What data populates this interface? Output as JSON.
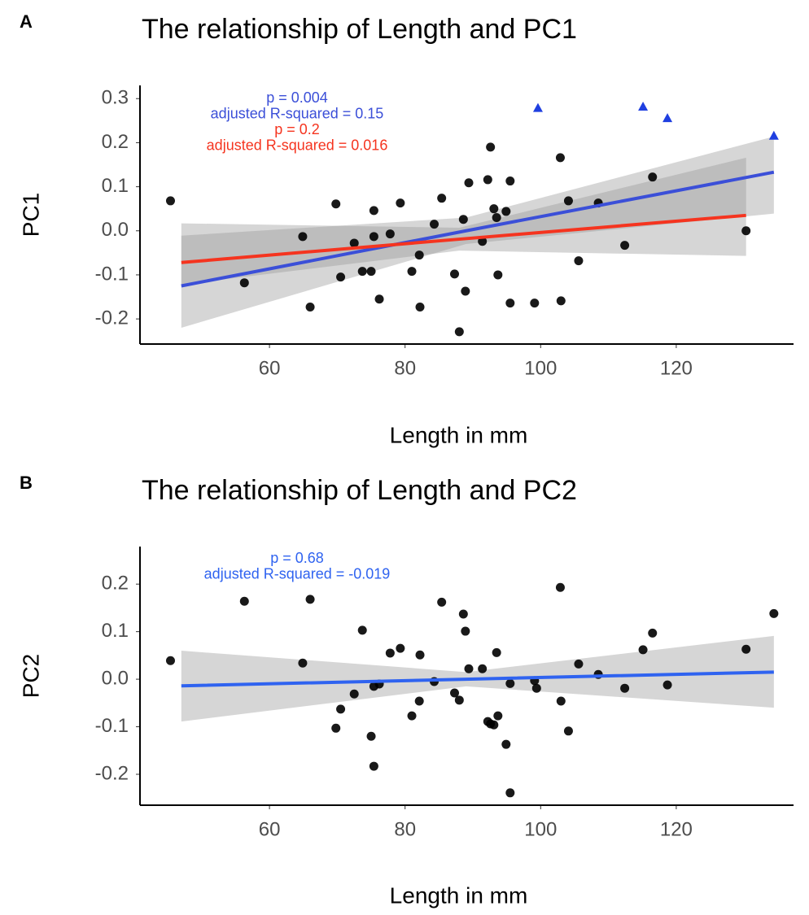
{
  "chart_data": [
    {
      "type": "scatter",
      "panel": "A",
      "title": "The relationship of Length and PC1",
      "x_label": "Length in mm",
      "y_label": "PC1",
      "xlim": [
        40.9,
        137.3
      ],
      "xticks": [
        60,
        80,
        100,
        120
      ],
      "ylim": [
        -0.257,
        0.33
      ],
      "yticks": [
        0.3,
        0.2,
        0.1,
        {
          "value": 0,
          "label": "0.0"
        },
        -0.1,
        -0.2
      ],
      "grid": false,
      "series": [
        {
          "color": "#000000",
          "marker": "circle",
          "x": [
            45.4,
            56.3,
            64.9,
            66.0,
            69.8,
            70.5,
            72.5,
            73.7,
            75.0,
            75.4,
            75.4,
            76.2,
            77.8,
            79.3,
            81.0,
            82.1,
            82.2,
            84.3,
            85.4,
            87.3,
            88.0,
            88.6,
            88.9,
            89.4,
            91.4,
            92.2,
            92.6,
            93.1,
            93.5,
            93.7,
            94.9,
            95.5,
            95.5,
            99.1,
            102.9,
            103.0,
            104.1,
            105.6,
            108.5,
            112.4,
            116.5,
            130.3
          ],
          "values": [
            0.068,
            -0.118,
            -0.013,
            -0.173,
            0.061,
            -0.105,
            -0.028,
            -0.092,
            -0.092,
            0.046,
            -0.013,
            -0.155,
            -0.007,
            0.063,
            -0.092,
            -0.055,
            -0.173,
            0.015,
            0.074,
            -0.098,
            -0.229,
            0.026,
            -0.137,
            0.109,
            -0.024,
            0.116,
            0.19,
            0.05,
            0.03,
            -0.1,
            0.044,
            0.113,
            -0.164,
            -0.164,
            0.166,
            -0.159,
            0.068,
            -0.068,
            0.063,
            -0.033,
            0.122,
            0.0
          ]
        },
        {
          "color": "#1f3fe0",
          "marker": "triangle",
          "x": [
            99.6,
            115.1,
            118.7,
            134.4
          ],
          "values": [
            0.279,
            0.282,
            0.256,
            0.216
          ]
        }
      ],
      "fits": [
        {
          "color": "#3b4fd8",
          "x": [
            47,
            89,
            134.4
          ],
          "values": [
            -0.125,
            0.0,
            0.133
          ],
          "lower": [
            -0.22,
            -0.03,
            0.039
          ],
          "upper": [
            -0.011,
            0.03,
            0.214
          ],
          "annotations": [
            "p = 0.004",
            "adjusted R-squared = 0.15"
          ]
        },
        {
          "color": "#f5341f",
          "x": [
            47,
            88,
            130.3
          ],
          "values": [
            -0.072,
            -0.019,
            0.035
          ],
          "lower": [
            -0.122,
            -0.045,
            -0.057
          ],
          "upper": [
            0.017,
            0.007,
            0.166
          ],
          "annotations": [
            "p = 0.2",
            "adjusted R-squared = 0.016"
          ]
        }
      ]
    },
    {
      "type": "scatter",
      "panel": "B",
      "title": "The relationship of Length and PC2",
      "x_label": "Length in mm",
      "y_label": "PC2",
      "xlim": [
        40.9,
        137.3
      ],
      "xticks": [
        60,
        80,
        100,
        120
      ],
      "ylim": [
        -0.265,
        0.279
      ],
      "yticks": [
        0.2,
        0.1,
        {
          "value": 0,
          "label": "0.0"
        },
        -0.1,
        -0.2
      ],
      "grid": false,
      "series": [
        {
          "color": "#000000",
          "marker": "circle",
          "x": [
            45.4,
            56.3,
            64.9,
            66.0,
            69.8,
            70.5,
            72.5,
            73.7,
            75.0,
            75.4,
            75.4,
            76.2,
            77.8,
            79.3,
            81.0,
            82.1,
            82.2,
            84.3,
            85.4,
            87.3,
            88.0,
            88.6,
            88.9,
            89.4,
            91.4,
            92.2,
            92.6,
            93.1,
            93.5,
            93.7,
            94.9,
            95.5,
            95.5,
            99.1,
            99.4,
            102.9,
            103.0,
            104.1,
            105.6,
            108.5,
            112.4,
            115.1,
            116.5,
            118.7,
            130.3,
            134.4
          ],
          "values": [
            0.039,
            0.164,
            0.034,
            0.168,
            -0.103,
            -0.063,
            -0.031,
            0.103,
            -0.12,
            -0.183,
            -0.015,
            -0.01,
            0.055,
            0.065,
            -0.077,
            -0.046,
            0.051,
            -0.005,
            0.162,
            -0.029,
            -0.044,
            0.137,
            0.101,
            0.022,
            0.022,
            -0.089,
            -0.094,
            -0.096,
            0.056,
            -0.077,
            -0.137,
            -0.009,
            -0.239,
            -0.003,
            -0.019,
            0.193,
            -0.046,
            -0.109,
            0.032,
            0.01,
            -0.019,
            0.062,
            0.097,
            -0.012,
            0.063,
            0.138
          ]
        }
      ],
      "fits": [
        {
          "color": "#2f63f0",
          "x": [
            47,
            89,
            134.4
          ],
          "values": [
            -0.014,
            0.0,
            0.015
          ],
          "lower": [
            -0.089,
            -0.015,
            -0.06
          ],
          "upper": [
            0.06,
            0.015,
            0.091
          ],
          "annotations": [
            "p = 0.68",
            "adjusted R-squared = -0.019"
          ]
        }
      ]
    }
  ]
}
